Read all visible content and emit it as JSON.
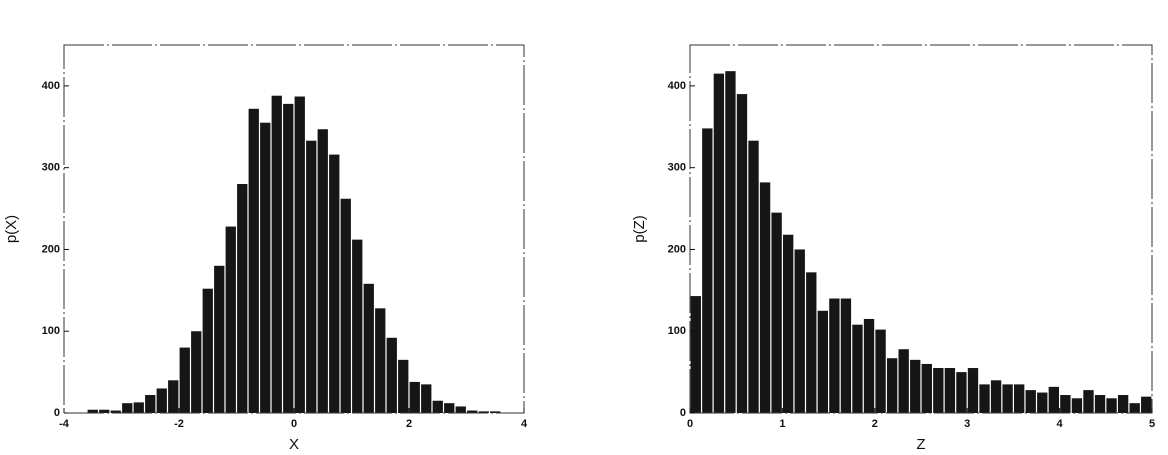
{
  "chart_data": [
    {
      "type": "histogram",
      "xlabel": "X",
      "ylabel": "p(X)",
      "color": "#161616",
      "bins": [
        -3.6,
        -3.4,
        -3.2,
        -3.0,
        -2.8,
        -2.6,
        -2.4,
        -2.2,
        -2.0,
        -1.8,
        -1.6,
        -1.4,
        -1.2,
        -1.0,
        -0.8,
        -0.6,
        -0.4,
        -0.2,
        0,
        0.2,
        0.4,
        0.6,
        0.8,
        1.0,
        1.2,
        1.4,
        1.6,
        1.8,
        2.0,
        2.2,
        2.4,
        2.6,
        2.8,
        3.0,
        3.2,
        3.4,
        3.6
      ],
      "values": [
        4,
        4,
        3,
        12,
        13,
        22,
        30,
        40,
        80,
        100,
        152,
        180,
        228,
        280,
        372,
        355,
        388,
        378,
        387,
        333,
        347,
        316,
        262,
        212,
        158,
        128,
        92,
        65,
        38,
        35,
        15,
        12,
        8,
        3,
        2,
        2
      ],
      "xlim": [
        -4,
        4
      ],
      "xticks": [
        -4,
        -2,
        0,
        2,
        4
      ],
      "ylim": [
        0,
        450
      ],
      "yticks": [
        0,
        100,
        200,
        300,
        400
      ]
    },
    {
      "type": "histogram",
      "xlabel": "Z",
      "ylabel": "p(Z)",
      "color": "#161616",
      "bins": [
        0,
        0.125,
        0.25,
        0.375,
        0.5,
        0.625,
        0.75,
        0.875,
        1,
        1.125,
        1.25,
        1.375,
        1.5,
        1.625,
        1.75,
        1.875,
        2,
        2.125,
        2.25,
        2.375,
        2.5,
        2.625,
        2.75,
        2.875,
        3,
        3.125,
        3.25,
        3.375,
        3.5,
        3.625,
        3.75,
        3.875,
        4,
        4.125,
        4.25,
        4.375,
        4.5,
        4.625,
        4.75,
        4.875,
        5
      ],
      "values": [
        143,
        348,
        415,
        418,
        390,
        333,
        282,
        245,
        218,
        200,
        172,
        125,
        140,
        140,
        108,
        115,
        102,
        67,
        78,
        65,
        60,
        55,
        55,
        50,
        55,
        35,
        40,
        35,
        35,
        28,
        25,
        32,
        22,
        18,
        28,
        22,
        18,
        22,
        12,
        20
      ],
      "xlim": [
        0,
        5
      ],
      "xticks": [
        0,
        1,
        2,
        3,
        4,
        5
      ],
      "ylim": [
        0,
        450
      ],
      "yticks": [
        0,
        100,
        200,
        300,
        400
      ]
    }
  ]
}
